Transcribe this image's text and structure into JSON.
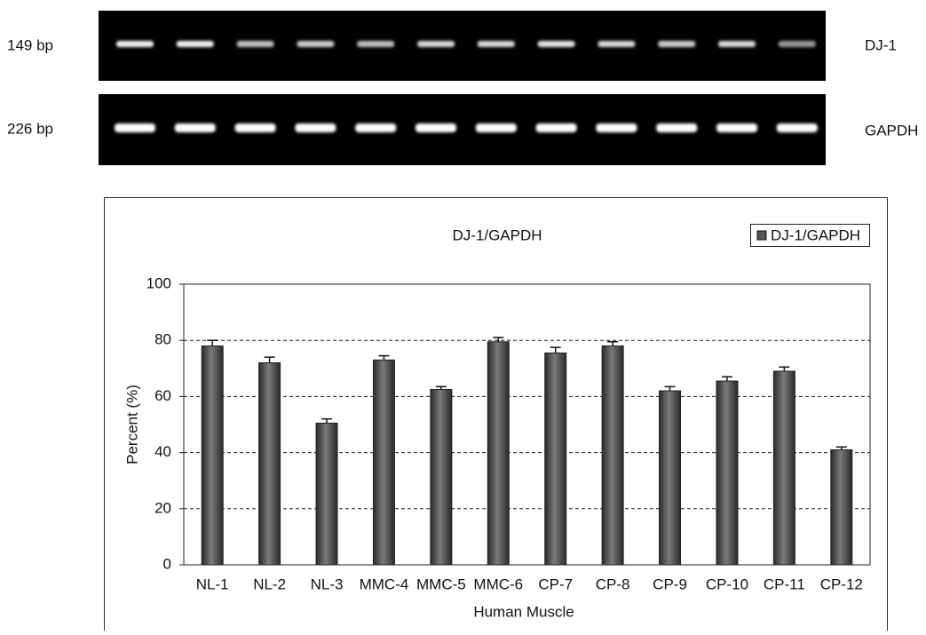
{
  "gel": {
    "rows": [
      {
        "size": "149 bp",
        "gene": "DJ-1"
      },
      {
        "size": "226 bp",
        "gene": "GAPDH"
      }
    ]
  },
  "chart_data": {
    "type": "bar",
    "title": "DJ-1/GAPDH",
    "x_label": "Human Muscle",
    "y_label": "Percent (%)",
    "categories": [
      "NL-1",
      "NL-2",
      "NL-3",
      "MMC-4",
      "MMC-5",
      "MMC-6",
      "CP-7",
      "CP-8",
      "CP-9",
      "CP-10",
      "CP-11",
      "CP-12"
    ],
    "series": [
      {
        "name": "DJ-1/GAPDH",
        "color": "#555555",
        "values": [
          78,
          72,
          50.5,
          73,
          62.5,
          79.5,
          75.5,
          78,
          62,
          65.5,
          69,
          41
        ],
        "errors": [
          2,
          2,
          1.5,
          1.5,
          1,
          1.5,
          2,
          1.5,
          1.5,
          1.5,
          1.5,
          1
        ]
      }
    ],
    "ylim": [
      0,
      100
    ],
    "yticks": [
      0,
      20,
      40,
      60,
      80,
      100
    ],
    "grid": true,
    "legend": "top-right"
  }
}
